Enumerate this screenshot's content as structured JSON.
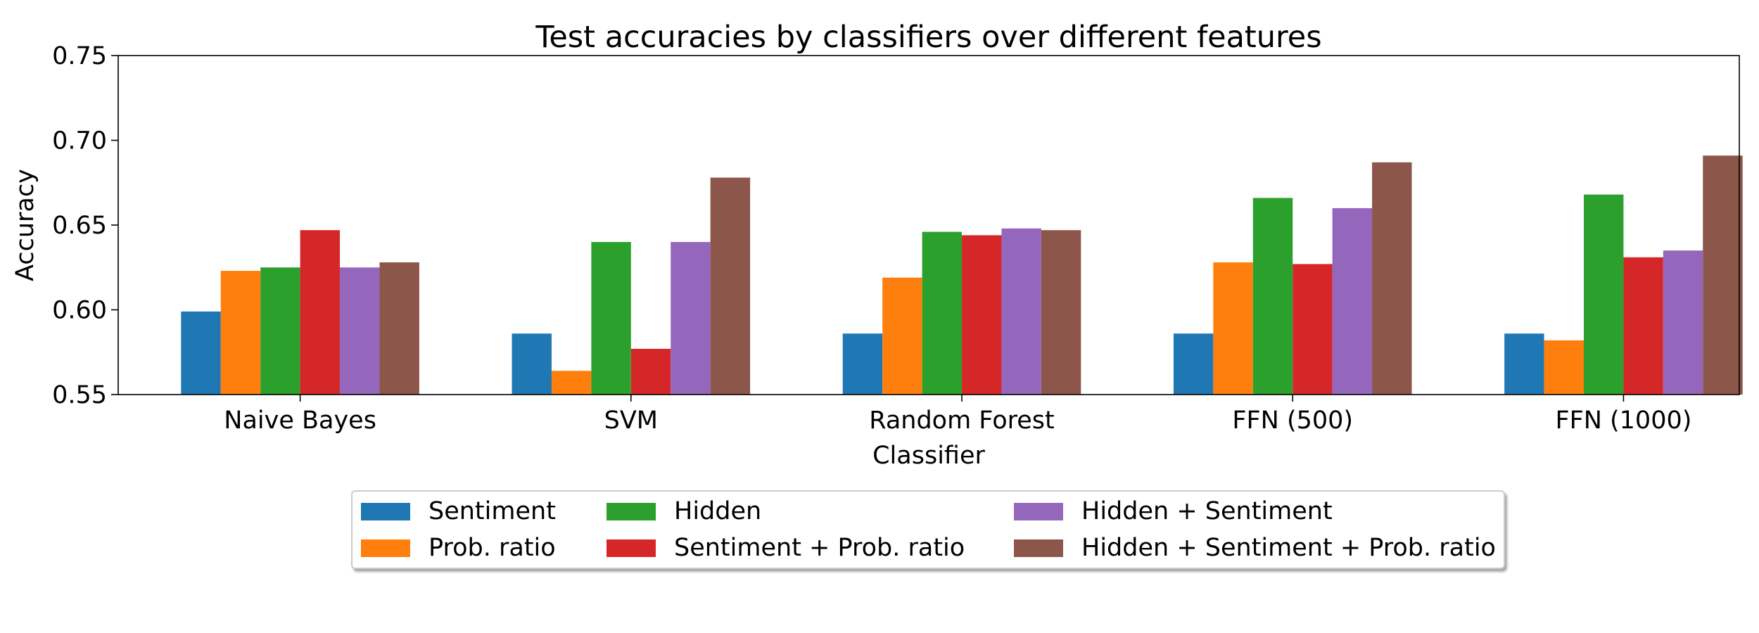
{
  "chart_data": {
    "type": "bar",
    "title": "Test accuracies by classifiers over different features",
    "xlabel": "Classifier",
    "ylabel": "Accuracy",
    "ylim": [
      0.55,
      0.75
    ],
    "yticks": [
      "0.55",
      "0.60",
      "0.65",
      "0.70",
      "0.75"
    ],
    "categories": [
      "Naive Bayes",
      "SVM",
      "Random Forest",
      "FFN (500)",
      "FFN (1000)"
    ],
    "grid": false,
    "legend_position": "below",
    "series": [
      {
        "name": "Sentiment",
        "color": "#1f77b4",
        "values": [
          0.599,
          0.586,
          0.586,
          0.586,
          0.586
        ]
      },
      {
        "name": "Prob. ratio",
        "color": "#ff7f0e",
        "values": [
          0.623,
          0.564,
          0.619,
          0.628,
          0.582
        ]
      },
      {
        "name": "Hidden",
        "color": "#2ca02c",
        "values": [
          0.625,
          0.64,
          0.646,
          0.666,
          0.668
        ]
      },
      {
        "name": "Sentiment + Prob. ratio",
        "color": "#d62728",
        "values": [
          0.647,
          0.577,
          0.644,
          0.627,
          0.631
        ]
      },
      {
        "name": "Hidden + Sentiment",
        "color": "#9467bd",
        "values": [
          0.625,
          0.64,
          0.648,
          0.66,
          0.635
        ]
      },
      {
        "name": "Hidden + Sentiment + Prob. ratio",
        "color": "#8c564b",
        "values": [
          0.628,
          0.678,
          0.647,
          0.687,
          0.691
        ]
      }
    ]
  }
}
